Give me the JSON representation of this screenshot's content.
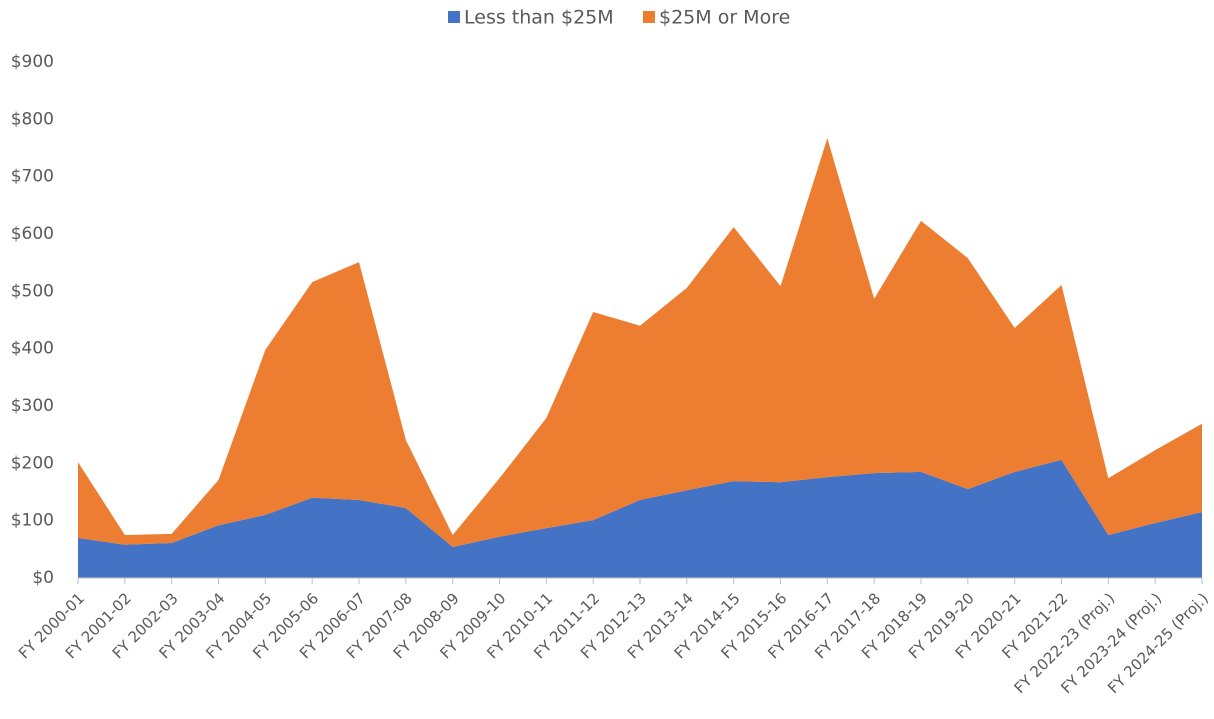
{
  "chart_data": {
    "type": "stacked_area",
    "categories": [
      "FY 2000-01",
      "FY 2001-02",
      "FY 2002-03",
      "FY 2003-04",
      "FY 2004-05",
      "FY 2005-06",
      "FY 2006-07",
      "FY 2007-08",
      "FY 2008-09",
      "FY 2009-10",
      "FY 2010-11",
      "FY 2011-12",
      "FY 2012-13",
      "FY 2013-14",
      "FY 2014-15",
      "FY 2015-16",
      "FY 2016-17",
      "FY 2017-18",
      "FY 2018-19",
      "FY 2019-20",
      "FY 2020-21",
      "FY 2021-22",
      "FY 2022-23 (Proj.)",
      "FY 2023-24 (Proj.)",
      "FY 2024-25 (Proj.)"
    ],
    "series": [
      {
        "name": "Less than $25M",
        "color": "#4472c4",
        "values": [
          70,
          58,
          61,
          92,
          110,
          140,
          136,
          122,
          54,
          72,
          87,
          101,
          136,
          153,
          169,
          167,
          176,
          183,
          185,
          155,
          185,
          206,
          75,
          96,
          115
        ]
      },
      {
        "name": "$25M or More",
        "color": "#ed7d31",
        "values": [
          132,
          17,
          16,
          79,
          288,
          376,
          415,
          119,
          21,
          102,
          192,
          363,
          304,
          353,
          443,
          342,
          591,
          304,
          438,
          403,
          251,
          305,
          99,
          127,
          154
        ]
      }
    ],
    "ylim": [
      0,
      900
    ],
    "yticks": [
      {
        "value": 0,
        "label": "$0"
      },
      {
        "value": 100,
        "label": "$100"
      },
      {
        "value": 200,
        "label": "$200"
      },
      {
        "value": 300,
        "label": "$300"
      },
      {
        "value": 400,
        "label": "$400"
      },
      {
        "value": 500,
        "label": "$500"
      },
      {
        "value": 600,
        "label": "$600"
      },
      {
        "value": 700,
        "label": "$700"
      },
      {
        "value": 800,
        "label": "$800"
      },
      {
        "value": 900,
        "label": "$900"
      }
    ],
    "legend": "top",
    "grid": false
  }
}
